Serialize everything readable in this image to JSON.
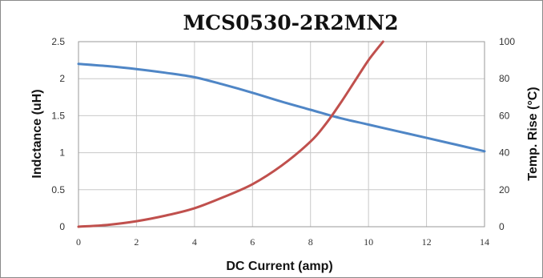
{
  "chart_data": {
    "type": "line",
    "title": "MCS0530-2R2MN2",
    "xlabel": "DC Current (amp)",
    "ylabel_left": "Indctance (uH)",
    "ylabel_right": "Temp. Rise (°C)",
    "xlim": [
      0,
      14
    ],
    "ylim_left": [
      0,
      2.5
    ],
    "ylim_right": [
      0,
      100
    ],
    "x_ticks": [
      "0",
      "2",
      "4",
      "6",
      "8",
      "10",
      "12",
      "14"
    ],
    "y_left_ticks": [
      "0",
      "0.5",
      "1",
      "1.5",
      "2",
      "2.5"
    ],
    "y_right_ticks": [
      "0",
      "20",
      "40",
      "60",
      "80",
      "100"
    ],
    "grid": true,
    "series": [
      {
        "axis": "left",
        "color": "#4f86c6",
        "x": [
          0,
          1,
          2,
          3,
          4,
          5,
          6,
          7,
          8,
          9,
          10,
          11,
          12,
          13,
          14
        ],
        "values": [
          2.2,
          2.17,
          2.13,
          2.08,
          2.02,
          1.92,
          1.81,
          1.69,
          1.58,
          1.47,
          1.38,
          1.29,
          1.2,
          1.11,
          1.02
        ]
      },
      {
        "axis": "right",
        "color": "#c0504d",
        "x": [
          0,
          1,
          2,
          3,
          4,
          5,
          6,
          7,
          8,
          8.5,
          9,
          9.5,
          10,
          10.5
        ],
        "values": [
          0,
          1,
          3,
          6,
          10,
          16,
          23,
          33,
          46,
          55,
          66,
          78,
          90,
          100
        ]
      }
    ]
  }
}
